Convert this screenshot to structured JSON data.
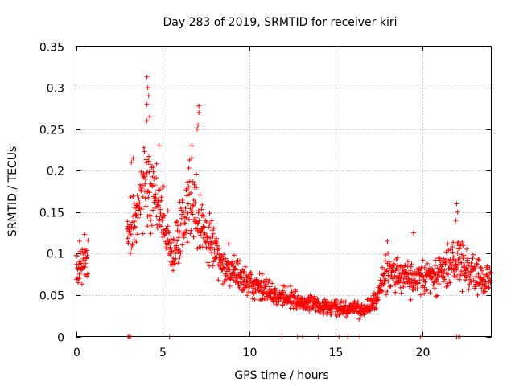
{
  "chart_data": {
    "type": "scatter",
    "title": "Day 283 of 2019, SRMTID for receiver kiri",
    "xlabel": "GPS time / hours",
    "ylabel": "SRMTID / TECUs",
    "xlim": [
      0,
      24
    ],
    "ylim": [
      0,
      0.35
    ],
    "xticks": [
      0,
      5,
      10,
      15,
      20
    ],
    "yticks": [
      0,
      0.05,
      0.1,
      0.15,
      0.2,
      0.25,
      0.3,
      0.35
    ],
    "xtick_labels": [
      "0",
      "5",
      "10",
      "15",
      "20"
    ],
    "ytick_labels": [
      "0",
      "0.05",
      "0.1",
      "0.15",
      "0.2",
      "0.25",
      "0.3",
      "0.35"
    ],
    "grid": true,
    "marker": "+",
    "marker_color": "#ff0000",
    "series": [
      {
        "name": "SRMTID",
        "trend": {
          "x": [
            0,
            0.3,
            0.6,
            3.0,
            3.5,
            4.0,
            4.3,
            4.8,
            5.2,
            5.6,
            6.0,
            6.5,
            7.0,
            7.3,
            7.8,
            8.5,
            9.5,
            10.5,
            11.5,
            12.5,
            13.5,
            14.5,
            15.5,
            16.5,
            17.3,
            17.8,
            18.3,
            18.8,
            19.3,
            20.0,
            20.8,
            21.5,
            22.0,
            22.5,
            23.0,
            23.5,
            24.0
          ],
          "y": [
            0.085,
            0.09,
            0.095,
            0.12,
            0.15,
            0.175,
            0.18,
            0.15,
            0.12,
            0.09,
            0.13,
            0.15,
            0.16,
            0.13,
            0.11,
            0.085,
            0.07,
            0.06,
            0.05,
            0.045,
            0.04,
            0.035,
            0.033,
            0.033,
            0.04,
            0.075,
            0.08,
            0.075,
            0.07,
            0.07,
            0.075,
            0.085,
            0.09,
            0.085,
            0.075,
            0.07,
            0.065
          ]
        },
        "gaps": [
          [
            0.7,
            2.95
          ]
        ],
        "highlights": [
          {
            "x": 4.1,
            "y": 0.313
          },
          {
            "x": 4.15,
            "y": 0.3
          },
          {
            "x": 4.2,
            "y": 0.29
          },
          {
            "x": 4.1,
            "y": 0.28
          },
          {
            "x": 4.25,
            "y": 0.265
          },
          {
            "x": 4.1,
            "y": 0.26
          },
          {
            "x": 7.1,
            "y": 0.278
          },
          {
            "x": 7.1,
            "y": 0.27
          },
          {
            "x": 7.05,
            "y": 0.255
          },
          {
            "x": 7.0,
            "y": 0.25
          },
          {
            "x": 3.2,
            "y": 0.21
          },
          {
            "x": 3.3,
            "y": 0.215
          },
          {
            "x": 4.8,
            "y": 0.23
          },
          {
            "x": 6.7,
            "y": 0.23
          },
          {
            "x": 22.0,
            "y": 0.16
          },
          {
            "x": 22.05,
            "y": 0.15
          },
          {
            "x": 21.95,
            "y": 0.14
          },
          {
            "x": 19.5,
            "y": 0.125
          },
          {
            "x": 18.0,
            "y": 0.115
          },
          {
            "x": 0.5,
            "y": 0.123
          },
          {
            "x": 0.2,
            "y": 0.115
          }
        ],
        "zero_points": [
          3.0,
          3.05,
          3.1,
          3.15,
          5.4,
          11.9,
          12.8,
          13.1,
          14.0,
          15.2,
          15.7,
          16.4,
          19.9,
          20.0,
          22.0,
          22.1,
          22.2
        ]
      }
    ]
  }
}
